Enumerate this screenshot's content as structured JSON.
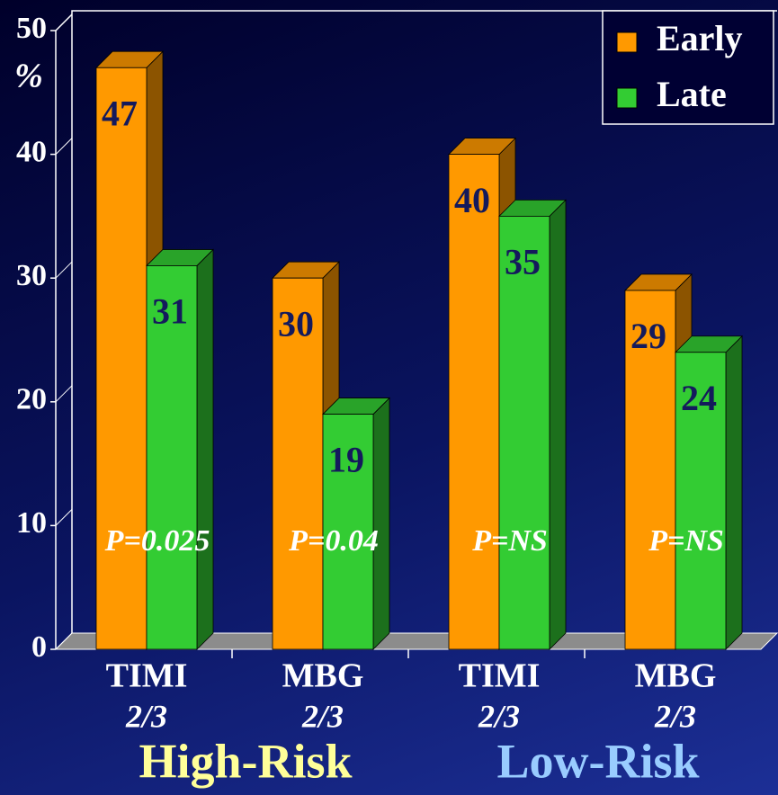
{
  "chart_data": {
    "type": "bar3d",
    "y_label": "%",
    "categories": [
      "TIMI",
      "MBG",
      "TIMI",
      "MBG"
    ],
    "category_sublabels": [
      "2/3",
      "2/3",
      "2/3",
      "2/3"
    ],
    "groups": [
      {
        "label": "High-Risk",
        "color": "#ffff99"
      },
      {
        "label": "Low-Risk",
        "color": "#99ccff"
      }
    ],
    "annotations": [
      "P=0.025",
      "P=0.04",
      "P=NS",
      "P=NS"
    ],
    "series": [
      {
        "name": "Early",
        "color": "#ff9900",
        "values": [
          47,
          30,
          40,
          29
        ]
      },
      {
        "name": "Late",
        "color": "#33cc33",
        "values": [
          31,
          19,
          35,
          24
        ]
      }
    ],
    "ylim": [
      0,
      50
    ],
    "yticks": [
      0,
      10,
      20,
      30,
      40,
      50
    ],
    "legend": "upper right"
  }
}
